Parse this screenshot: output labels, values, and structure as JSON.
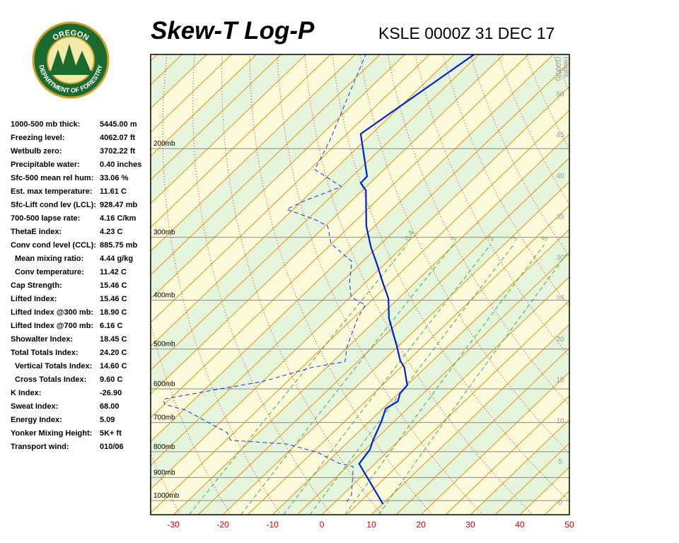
{
  "logo": {
    "top": "OREGON",
    "bottom": "DEPARTMENT OF FORESTRY"
  },
  "indices": [
    [
      "1000-500 mb thick:",
      "5445.00 m"
    ],
    [
      "Freezing level:",
      "4062.07 ft"
    ],
    [
      "Wetbulb zero:",
      "3702.22 ft"
    ],
    [
      "Precipitable water:",
      "0.40 inches"
    ],
    [
      "Sfc-500 mean rel hum:",
      "33.06 %"
    ],
    [
      "Est. max temperature:",
      "11.61 C"
    ],
    [
      "Sfc-Lift cond lev (LCL):",
      "928.47 mb"
    ],
    [
      "700-500 lapse rate:",
      "4.16 C/km"
    ],
    [
      "ThetaE index:",
      "4.23 C"
    ],
    [
      "Conv cond level (CCL):",
      "885.75 mb"
    ],
    [
      "Mean mixing ratio:",
      "4.44 g/kg"
    ],
    [
      "Conv temperature:",
      "11.42 C"
    ],
    [
      "Cap Strength:",
      "15.46 C"
    ],
    [
      "Lifted Index:",
      "15.46 C"
    ],
    [
      "Lifted Index @300 mb:",
      "18.90 C"
    ],
    [
      "Lifted Index @700 mb:",
      "6.16 C"
    ],
    [
      "Showalter Index:",
      "18.45 C"
    ],
    [
      "Total Totals Index:",
      "24.20 C"
    ],
    [
      "Vertical Totals Index:",
      "14.60 C"
    ],
    [
      "Cross Totals Index:",
      "9.60 C"
    ],
    [
      "K Index:",
      "-26.90"
    ],
    [
      "Sweat Index:",
      "68.00"
    ],
    [
      "Energy Index:",
      "5.09"
    ],
    [
      "Yonker Mixing Height:",
      "5K+ ft"
    ],
    [
      "Transport wind:",
      "010/06"
    ]
  ],
  "chart_data": {
    "type": "skew-t",
    "title": "Skew-T Log-P",
    "subtitle": "KSLE 0000Z 31 DEC 17",
    "xlim": [
      -34.6,
      50
    ],
    "xticks": [
      -30,
      -20,
      -10,
      0,
      10,
      20,
      30,
      40,
      50
    ],
    "ylim": [
      1067,
      130
    ],
    "log_y": true,
    "yticks": [
      {
        "value": 1000,
        "label": "1000mb"
      },
      {
        "value": 900,
        "label": "900mb"
      },
      {
        "value": 800,
        "label": "800mb"
      },
      {
        "value": 700,
        "label": "700mb"
      },
      {
        "value": 600,
        "label": "600mb"
      },
      {
        "value": 500,
        "label": "500mb"
      },
      {
        "value": 400,
        "label": "400mb"
      },
      {
        "value": 300,
        "label": "300mb"
      },
      {
        "value": 200,
        "label": "200mb"
      }
    ],
    "height_label": [
      "Height",
      "(1000ft)"
    ],
    "hlim": [
      -1.56,
      54.8
    ],
    "height_ticks": [
      0,
      5,
      10,
      15,
      20,
      25,
      30,
      35,
      40,
      45,
      50
    ],
    "mixing_ratio_lines": [
      0.4,
      1,
      2,
      3,
      5,
      8
    ],
    "series": [
      {
        "color": "#0022cc",
        "x": [
          10.1,
          -3.2,
          -4.0,
          -5.4,
          -7.6,
          -9.4,
          -8.5,
          -9.7,
          -10.0,
          -14.3,
          -16.6,
          -19.9,
          -27.8,
          -32.0,
          -36.5,
          -41.4,
          -46.3,
          -51.7,
          -59.3,
          -61.9,
          -62.0,
          -72.2,
          -66.0
        ],
        "y": [
          1016,
          845,
          792,
          757,
          696,
          657,
          635,
          613,
          590,
          544,
          527,
          497,
          434,
          397,
          369,
          340,
          314,
          285,
          242,
          234,
          227,
          187,
          130
        ]
      },
      {
        "color": "#1133dd",
        "dashed": true,
        "x": [
          2.3,
          1.8,
          -3.8,
          -7.6,
          -14.0,
          -22.1,
          -34.1,
          -36.4,
          -49.6,
          -55.0,
          -56.3,
          -48.0,
          -39.9,
          -33.0,
          -27.5,
          -30.3,
          -34.1,
          -35.3,
          -39.9,
          -43.2,
          -47.2,
          -55.1,
          -59.5,
          -63.8,
          -71.3,
          -69.5,
          -65.0,
          -74.0,
          -77.0,
          -83.8,
          -87.9
        ],
        "y": [
          1006,
          974,
          856,
          842,
          802,
          772,
          759,
          733,
          661,
          644,
          629,
          603,
          580,
          544,
          530,
          494,
          434,
          409,
          394,
          369,
          335,
          309,
          285,
          276,
          264,
          254,
          238,
          220,
          193,
          151,
          130
        ]
      }
    ]
  }
}
